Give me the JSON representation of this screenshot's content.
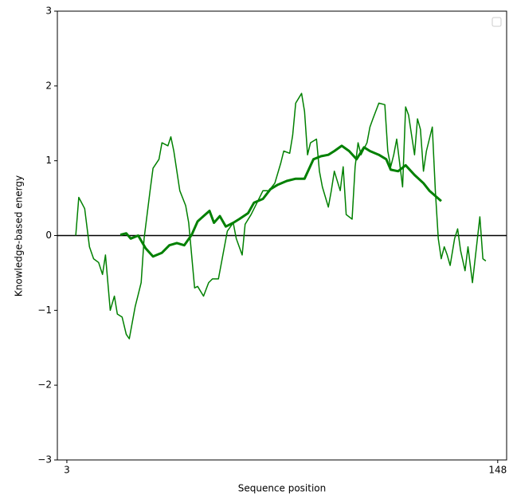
{
  "chart_data": {
    "type": "line",
    "xlabel": "Sequence position",
    "ylabel": "Knowledge-based energy",
    "xlim": [
      -0.2,
      151
    ],
    "ylim": [
      -3,
      3
    ],
    "xticks": [
      3,
      148
    ],
    "yticks": [
      {
        "value": -3,
        "label": "−3"
      },
      {
        "value": -2,
        "label": "−2"
      },
      {
        "value": -1,
        "label": "−1"
      },
      0,
      1,
      2,
      3
    ],
    "hlines": [
      0
    ],
    "hline_color": "#000000",
    "legend": "upper right",
    "series": [
      {
        "color": "#008000",
        "width": 1.5,
        "x": [
          6,
          7,
          9,
          10.6,
          12,
          13.7,
          15,
          16,
          17.6,
          19,
          20,
          21.6,
          23,
          24,
          26,
          27,
          28,
          29,
          31,
          32,
          34,
          35,
          37,
          38,
          39,
          41,
          43,
          44,
          46,
          47,
          49,
          50.7,
          52,
          54,
          55.5,
          57,
          59,
          60,
          62,
          63,
          65,
          67,
          69,
          71,
          73,
          75,
          76,
          78,
          79,
          80,
          82,
          83,
          84,
          85,
          87,
          88,
          89,
          91,
          92,
          93,
          95,
          96,
          97,
          99,
          100,
          101,
          102,
          104,
          105,
          106,
          108,
          110,
          111,
          112,
          113,
          114,
          116,
          117,
          118,
          120,
          121,
          122,
          123,
          124,
          126,
          127,
          128,
          129,
          130,
          131,
          132,
          133.5,
          134.5,
          135.5,
          137,
          138,
          139.5,
          141,
          142,
          143,
          144
        ],
        "values": [
          0,
          0.51,
          0.36,
          -0.15,
          -0.31,
          -0.36,
          -0.52,
          -0.26,
          -1.0,
          -0.81,
          -1.05,
          -1.09,
          -1.32,
          -1.38,
          -0.95,
          -0.79,
          -0.63,
          -0.04,
          0.6,
          0.9,
          1.02,
          1.24,
          1.2,
          1.32,
          1.13,
          0.6,
          0.4,
          0.17,
          -0.7,
          -0.68,
          -0.81,
          -0.63,
          -0.58,
          -0.58,
          -0.26,
          0.06,
          0.17,
          -0.04,
          -0.26,
          0.15,
          0.28,
          0.44,
          0.6,
          0.6,
          0.7,
          0.97,
          1.13,
          1.1,
          1.34,
          1.77,
          1.9,
          1.66,
          1.08,
          1.24,
          1.29,
          0.86,
          0.65,
          0.38,
          0.6,
          0.86,
          0.6,
          0.92,
          0.28,
          0.22,
          0.92,
          1.24,
          1.08,
          1.24,
          1.45,
          1.56,
          1.77,
          1.75,
          1.13,
          0.92,
          1.08,
          1.29,
          0.65,
          1.72,
          1.61,
          1.08,
          1.56,
          1.42,
          0.86,
          1.13,
          1.45,
          0.6,
          -0.04,
          -0.31,
          -0.15,
          -0.26,
          -0.4,
          -0.04,
          0.09,
          -0.2,
          -0.47,
          -0.15,
          -0.63,
          -0.1,
          0.25,
          -0.31,
          -0.34
        ]
      },
      {
        "color": "#008000",
        "width": 3,
        "x": [
          21,
          23,
          24.5,
          27,
          29.5,
          32,
          35,
          37.5,
          40,
          42.5,
          45,
          47,
          49,
          51,
          52.5,
          54.5,
          56.5,
          59,
          61,
          64,
          66,
          69,
          71.5,
          74,
          77,
          80,
          83,
          86,
          88.5,
          91,
          93,
          95.5,
          98,
          100.5,
          103,
          105,
          108,
          110.5,
          112,
          114.5,
          117,
          120,
          123,
          125,
          129
        ],
        "values": [
          0.01,
          0.03,
          -0.04,
          0,
          -0.17,
          -0.28,
          -0.23,
          -0.13,
          -0.1,
          -0.13,
          0.01,
          0.19,
          0.26,
          0.33,
          0.17,
          0.26,
          0.12,
          0.17,
          0.22,
          0.3,
          0.44,
          0.49,
          0.62,
          0.68,
          0.73,
          0.76,
          0.76,
          1.02,
          1.06,
          1.08,
          1.13,
          1.2,
          1.13,
          1.02,
          1.18,
          1.13,
          1.08,
          1.02,
          0.88,
          0.86,
          0.94,
          0.81,
          0.7,
          0.6,
          0.46
        ]
      }
    ]
  }
}
